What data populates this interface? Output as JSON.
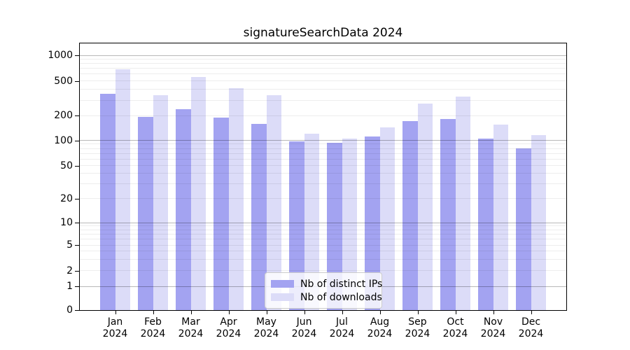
{
  "title": "signatureSearchData 2024",
  "legend": {
    "position": "lower center",
    "items": [
      {
        "label": "Nb of distinct IPs",
        "color": "#a3a3f1"
      },
      {
        "label": "Nb of downloads",
        "color": "#dcdcf8"
      }
    ]
  },
  "chart_data": {
    "type": "bar",
    "title": "signatureSearchData 2024",
    "categories": [
      "Jan",
      "Feb",
      "Mar",
      "Apr",
      "May",
      "Jun",
      "Jul",
      "Aug",
      "Sep",
      "Oct",
      "Nov",
      "Dec"
    ],
    "category_year": "2024",
    "series": [
      {
        "name": "Nb of distinct IPs",
        "color": "#a3a3f1",
        "values": [
          355,
          192,
          235,
          187,
          159,
          98,
          93,
          112,
          172,
          180,
          106,
          80
        ]
      },
      {
        "name": "Nb of downloads",
        "color": "#dcdcf8",
        "values": [
          680,
          345,
          555,
          415,
          345,
          120,
          106,
          143,
          275,
          330,
          154,
          115
        ]
      }
    ],
    "xlabel": "",
    "ylabel": "",
    "yscale": "symlog",
    "ylim": [
      0,
      1380
    ],
    "yticks_labeled": [
      "1000",
      "500",
      "200",
      "100",
      "50",
      "20",
      "10",
      "5",
      "2",
      "1",
      "0"
    ],
    "ytick_values": [
      1000,
      500,
      200,
      100,
      50,
      20,
      10,
      5,
      2,
      1,
      0
    ],
    "y_gridlines_major": [
      1,
      10,
      100,
      1000
    ],
    "y_gridlines_minor": [
      2,
      3,
      4,
      5,
      6,
      7,
      8,
      9,
      20,
      30,
      40,
      50,
      60,
      70,
      80,
      90,
      200,
      300,
      400,
      500,
      600,
      700,
      800,
      900
    ],
    "grid": true,
    "legend_position": "lower center"
  }
}
